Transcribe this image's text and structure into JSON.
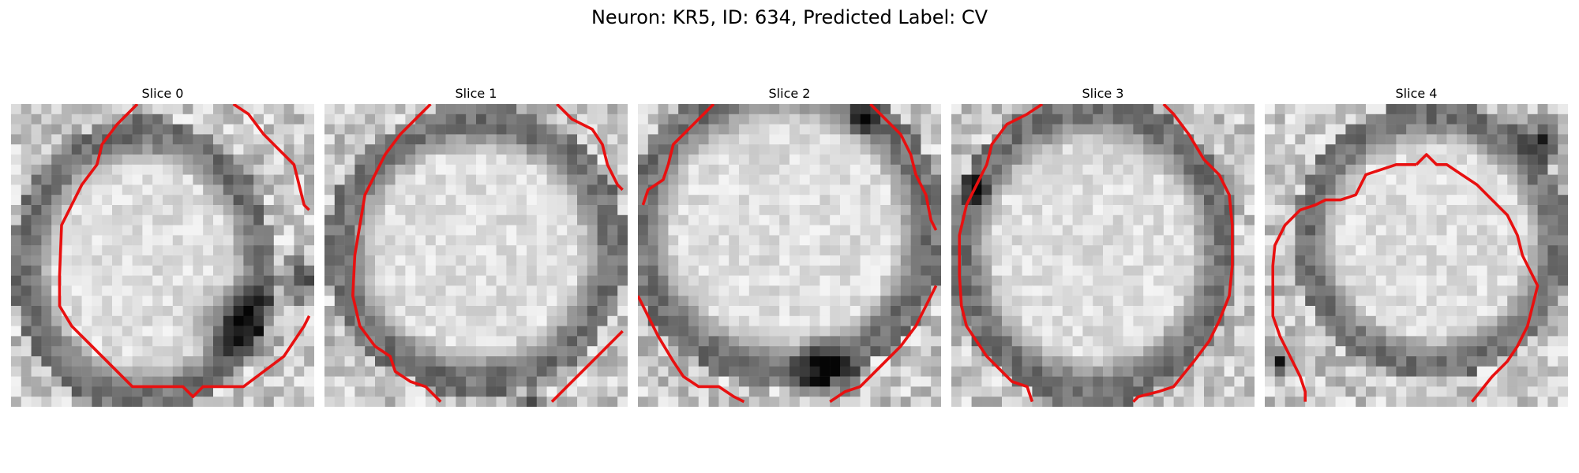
{
  "figure": {
    "title": "Neuron: KR5, ID: 634, Predicted Label: CV"
  },
  "colors": {
    "contour": "#e81010",
    "image_colormap": "grayscale"
  },
  "panels": [
    {
      "title": "Slice 0"
    },
    {
      "title": "Slice 1"
    },
    {
      "title": "Slice 2"
    },
    {
      "title": "Slice 3"
    },
    {
      "title": "Slice 4"
    }
  ]
}
